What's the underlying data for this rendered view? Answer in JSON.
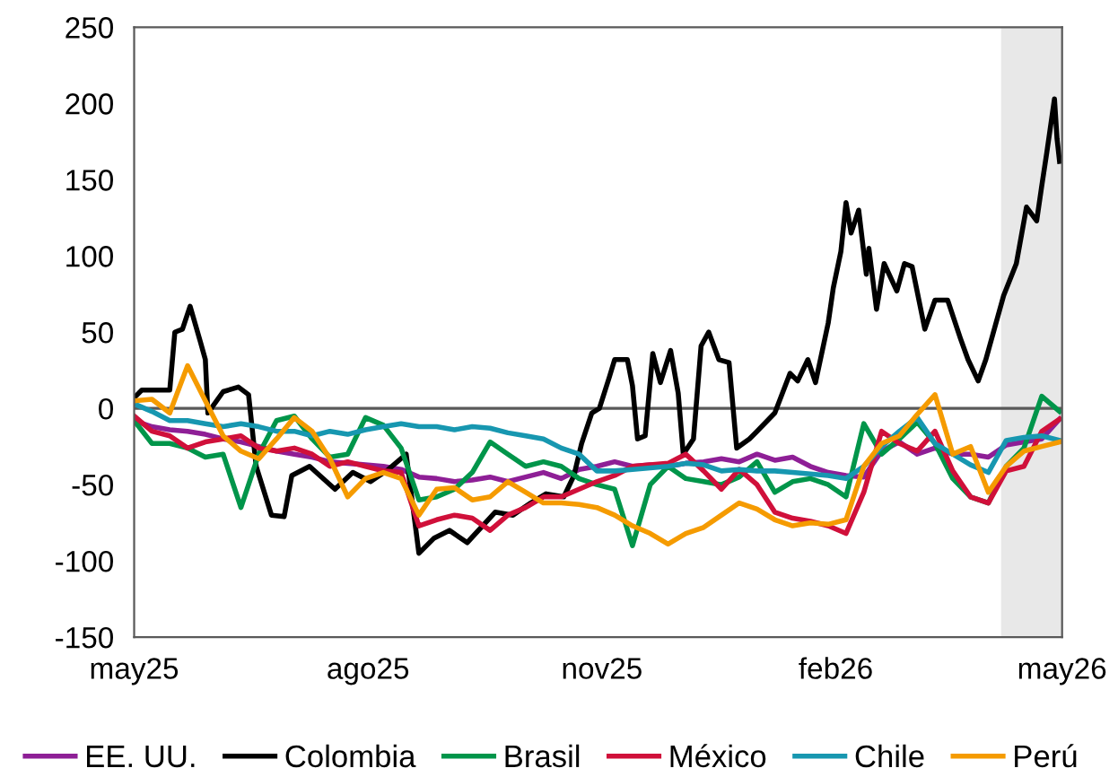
{
  "chart_data": {
    "type": "line",
    "x": [
      "2025-05-01",
      "2025-05-08",
      "2025-05-15",
      "2025-05-22",
      "2025-05-29",
      "2025-06-05",
      "2025-06-12",
      "2025-06-19",
      "2025-06-26",
      "2025-07-03",
      "2025-07-10",
      "2025-07-17",
      "2025-07-24",
      "2025-07-31",
      "2025-08-07",
      "2025-08-14",
      "2025-08-21",
      "2025-08-28",
      "2025-09-04",
      "2025-09-11",
      "2025-09-18",
      "2025-09-25",
      "2025-10-02",
      "2025-10-09",
      "2025-10-16",
      "2025-10-23",
      "2025-10-30",
      "2025-11-06",
      "2025-11-13",
      "2025-11-20",
      "2025-11-27",
      "2025-12-04",
      "2025-12-11",
      "2025-12-18",
      "2025-12-25",
      "2026-01-01",
      "2026-01-08",
      "2026-01-15",
      "2026-01-22",
      "2026-01-29",
      "2026-02-05",
      "2026-02-12",
      "2026-02-19",
      "2026-02-26",
      "2026-03-05",
      "2026-03-12",
      "2026-03-19",
      "2026-03-26",
      "2026-04-02",
      "2026-04-09",
      "2026-04-16",
      "2026-04-23",
      "2026-04-30"
    ],
    "series": [
      {
        "name": "EE. UU.",
        "color": "#8e1f96",
        "values": [
          -8,
          -12,
          -14,
          -15,
          -17,
          -20,
          -22,
          -25,
          -28,
          -30,
          -32,
          -35,
          -36,
          -37,
          -38,
          -40,
          -45,
          -46,
          -48,
          -47,
          -45,
          -48,
          -45,
          -42,
          -46,
          -40,
          -38,
          -35,
          -38,
          -37,
          -38,
          -36,
          -35,
          -33,
          -35,
          -30,
          -34,
          -32,
          -38,
          -42,
          -44,
          -45,
          -28,
          -22,
          -30,
          -26,
          -30,
          -30,
          -32,
          -24,
          -22,
          -20,
          -7
        ]
      },
      {
        "name": "Colombia",
        "color": "#000000",
        "x": [
          "2025-05-01",
          "2025-05-04",
          "2025-05-15",
          "2025-05-17",
          "2025-05-20",
          "2025-05-23",
          "2025-05-27",
          "2025-05-29",
          "2025-05-30",
          "2025-06-05",
          "2025-06-11",
          "2025-06-15",
          "2025-06-18",
          "2025-06-24",
          "2025-06-29",
          "2025-07-02",
          "2025-07-09",
          "2025-07-19",
          "2025-07-26",
          "2025-08-02",
          "2025-08-09",
          "2025-08-16",
          "2025-08-21",
          "2025-08-27",
          "2025-09-02",
          "2025-09-09",
          "2025-09-20",
          "2025-09-27",
          "2025-10-04",
          "2025-10-10",
          "2025-10-17",
          "2025-10-21",
          "2025-10-24",
          "2025-10-28",
          "2025-10-31",
          "2025-11-04",
          "2025-11-06",
          "2025-11-11",
          "2025-11-13",
          "2025-11-15",
          "2025-11-18",
          "2025-11-21",
          "2025-11-24",
          "2025-11-28",
          "2025-12-01",
          "2025-12-03",
          "2025-12-07",
          "2025-12-10",
          "2025-12-13",
          "2025-12-17",
          "2025-12-21",
          "2025-12-24",
          "2025-12-29",
          "2026-01-01",
          "2026-01-08",
          "2026-01-14",
          "2026-01-17",
          "2026-01-21",
          "2026-01-24",
          "2026-01-29",
          "2026-01-31",
          "2026-02-03",
          "2026-02-05",
          "2026-02-07",
          "2026-02-10",
          "2026-02-13",
          "2026-02-14",
          "2026-02-17",
          "2026-02-20",
          "2026-02-25",
          "2026-02-28",
          "2026-03-03",
          "2026-03-08",
          "2026-03-12",
          "2026-03-17",
          "2026-03-22",
          "2026-03-25",
          "2026-03-29",
          "2026-04-01",
          "2026-04-08",
          "2026-04-13",
          "2026-04-17",
          "2026-04-21",
          "2026-04-23",
          "2026-04-25",
          "2026-04-28",
          "2026-04-29",
          "2026-04-30"
        ],
        "values": [
          7,
          12,
          12,
          50,
          52,
          67,
          44,
          32,
          -3,
          11,
          14,
          9,
          -38,
          -70,
          -71,
          -44,
          -38,
          -53,
          -42,
          -48,
          -40,
          -30,
          -95,
          -85,
          -80,
          -88,
          -68,
          -70,
          -62,
          -56,
          -58,
          -44,
          -23,
          -3,
          0,
          21,
          32,
          32,
          15,
          -20,
          -18,
          36,
          17,
          38,
          10,
          -30,
          -20,
          41,
          50,
          32,
          30,
          -26,
          -20,
          -15,
          -3,
          23,
          18,
          32,
          17,
          56,
          79,
          103,
          135,
          115,
          130,
          88,
          105,
          65,
          95,
          77,
          95,
          93,
          52,
          71,
          71,
          46,
          32,
          18,
          32,
          74,
          95,
          132,
          123,
          146,
          168,
          203,
          177,
          162
        ]
      },
      {
        "name": "Brasil",
        "color": "#00954a",
        "values": [
          -8,
          -23,
          -23,
          -26,
          -32,
          -30,
          -65,
          -30,
          -8,
          -5,
          -20,
          -32,
          -30,
          -6,
          -11,
          -26,
          -60,
          -58,
          -53,
          -42,
          -22,
          -30,
          -38,
          -35,
          -38,
          -46,
          -50,
          -53,
          -90,
          -50,
          -38,
          -46,
          -48,
          -50,
          -45,
          -35,
          -55,
          -48,
          -46,
          -50,
          -58,
          -10,
          -30,
          -20,
          -9,
          -23,
          -46,
          -58,
          -62,
          -38,
          -26,
          8,
          -2
        ]
      },
      {
        "name": "México",
        "color": "#d0103a",
        "values": [
          -5,
          -15,
          -18,
          -26,
          -22,
          -20,
          -18,
          -26,
          -28,
          -26,
          -30,
          -38,
          -35,
          -38,
          -41,
          -42,
          -77,
          -73,
          -70,
          -72,
          -80,
          -70,
          -65,
          -58,
          -58,
          -53,
          -48,
          -44,
          -38,
          -37,
          -36,
          -30,
          -41,
          -53,
          -40,
          -50,
          -68,
          -72,
          -74,
          -77,
          -82,
          -55,
          -15,
          -23,
          -28,
          -15,
          -41,
          -58,
          -62,
          -41,
          -38,
          -15,
          -7
        ]
      },
      {
        "name": "Chile",
        "color": "#1797b0",
        "values": [
          3,
          -2,
          -8,
          -8,
          -10,
          -12,
          -10,
          -12,
          -15,
          -15,
          -18,
          -15,
          -17,
          -14,
          -12,
          -10,
          -12,
          -12,
          -14,
          -12,
          -13,
          -16,
          -18,
          -20,
          -26,
          -30,
          -41,
          -41,
          -40,
          -39,
          -38,
          -36,
          -37,
          -41,
          -40,
          -41,
          -41,
          -42,
          -43,
          -44,
          -46,
          -38,
          -25,
          -15,
          -6,
          -23,
          -30,
          -37,
          -42,
          -21,
          -19,
          -18,
          -21
        ]
      },
      {
        "name": "Perú",
        "color": "#f59b00",
        "values": [
          5,
          6,
          -3,
          28,
          5,
          -18,
          -28,
          -33,
          -20,
          -6,
          -15,
          -33,
          -58,
          -46,
          -42,
          -46,
          -70,
          -53,
          -52,
          -60,
          -58,
          -48,
          -55,
          -62,
          -62,
          -63,
          -65,
          -70,
          -77,
          -82,
          -89,
          -82,
          -78,
          -70,
          -62,
          -66,
          -73,
          -77,
          -75,
          -76,
          -73,
          -38,
          -23,
          -18,
          -4,
          9,
          -30,
          -25,
          -55,
          -38,
          -28,
          -25,
          -22
        ]
      }
    ],
    "xlim": [
      "2025-05-01",
      "2026-05-01"
    ],
    "xticks": [
      {
        "value": "2025-05-01",
        "label": "may25"
      },
      {
        "value": "2025-08-01",
        "label": "ago25"
      },
      {
        "value": "2025-11-01",
        "label": "nov25"
      },
      {
        "value": "2026-02-01",
        "label": "feb26"
      },
      {
        "value": "2026-05-01",
        "label": "may26"
      }
    ],
    "ylim": [
      -150,
      250
    ],
    "yticks": [
      -150,
      -100,
      -50,
      0,
      50,
      100,
      150,
      200,
      250
    ],
    "ref_lines": [
      {
        "axis": "y",
        "value": 0,
        "color": "#595959"
      }
    ],
    "bands": [
      {
        "axis": "x",
        "from": "2026-04-07",
        "to": "2026-05-01",
        "color": "#e8e8e8"
      }
    ],
    "grid": false,
    "legend": "bottom",
    "marker": "none",
    "line_style": "solid"
  }
}
